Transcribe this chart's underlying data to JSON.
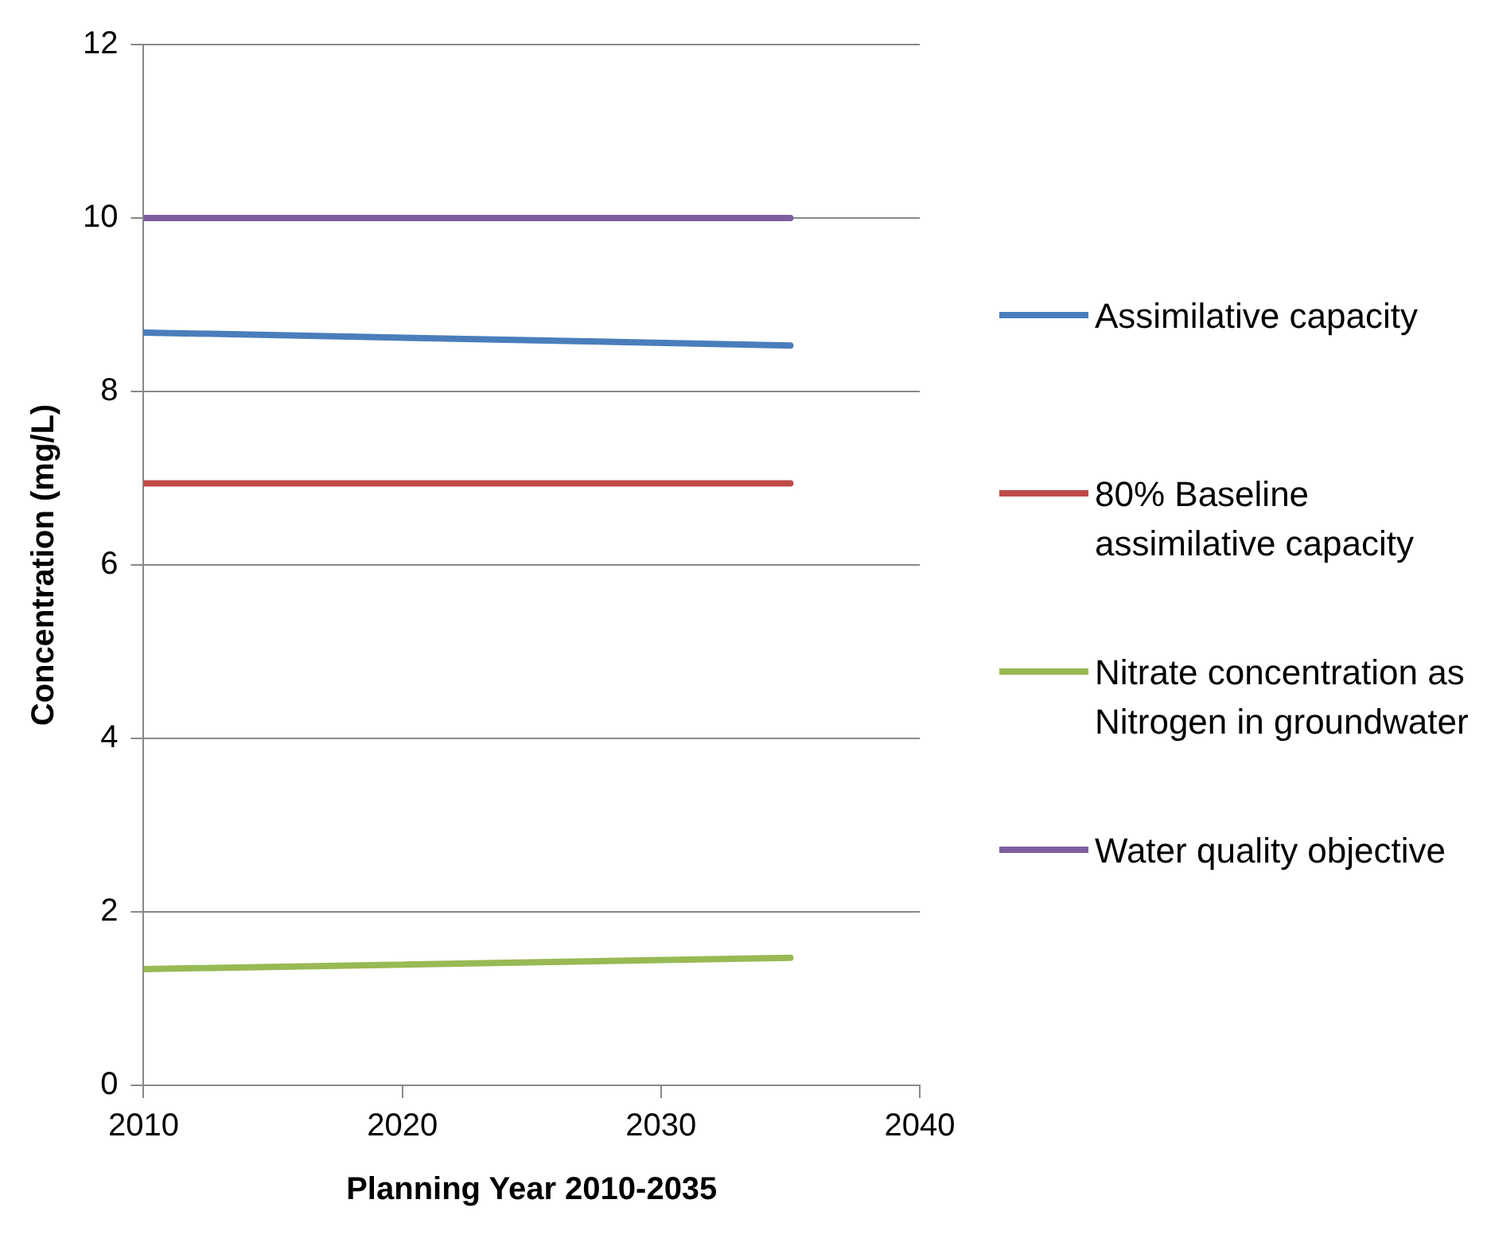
{
  "chart_data": {
    "type": "line",
    "xlabel": "Planning Year 2010-2035",
    "ylabel": "Concentration (mg/L)",
    "x": [
      2010,
      2035
    ],
    "series": [
      {
        "name": "Assimilative capacity",
        "color": "#4a7ebb",
        "values": [
          8.68,
          8.53
        ]
      },
      {
        "name": "80% Baseline assimilative capacity",
        "color": "#be4b48",
        "values": [
          6.94,
          6.94
        ]
      },
      {
        "name": "Nitrate concentration as Nitrogen in groundwater",
        "color": "#98b954",
        "values": [
          1.34,
          1.47
        ]
      },
      {
        "name": "Water quality objective",
        "color": "#7d5fa0",
        "values": [
          10,
          10
        ]
      }
    ],
    "xlim": [
      2010,
      2040
    ],
    "xticks": [
      2010,
      2020,
      2030,
      2040
    ],
    "ylim": [
      0,
      12
    ],
    "yticks": [
      0,
      2,
      4,
      6,
      8,
      10,
      12
    ],
    "grid": "y",
    "legend": "right",
    "marker": "none",
    "line_style": "solid"
  }
}
